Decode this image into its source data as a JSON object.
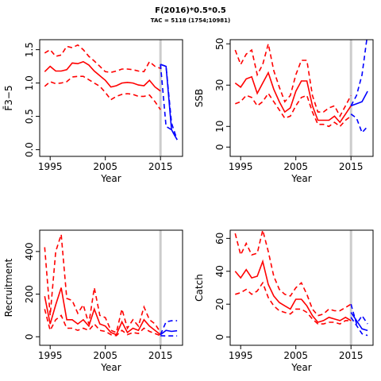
{
  "title": "F(2016)*0.5*0.5",
  "subtitle": "TAC = 5118 (1754;10981)",
  "chart_data": [
    {
      "type": "line",
      "xlabel": "Year",
      "ylabel": "F̄3−5",
      "xlim": [
        1993.1,
        2019
      ],
      "ylim": [
        -0.1,
        1.65
      ],
      "xticks": [
        1995,
        2005,
        2015
      ],
      "yticks": [
        {
          "value": 0,
          "label": "0.0"
        },
        {
          "value": 0.5,
          "label": "0.5"
        },
        {
          "value": 1,
          "label": "1.0"
        },
        {
          "value": 1.5,
          "label": "1.5"
        }
      ],
      "vline": 2015,
      "series": [
        {
          "color": "#ff0000",
          "dash": false,
          "x": [
            1994,
            1995,
            1996,
            1997,
            1998,
            1999,
            2000,
            2001,
            2002,
            2003,
            2004,
            2005,
            2006,
            2007,
            2008,
            2009,
            2010,
            2011,
            2012,
            2013,
            2014,
            2015
          ],
          "values": [
            1.17,
            1.25,
            1.18,
            1.18,
            1.2,
            1.3,
            1.29,
            1.32,
            1.27,
            1.18,
            1.11,
            1.04,
            0.94,
            0.96,
            1.0,
            1.01,
            1.0,
            0.97,
            0.96,
            1.04,
            0.94,
            0.88
          ]
        },
        {
          "color": "#ff0000",
          "dash": true,
          "x": [
            1994,
            1995,
            1996,
            1997,
            1998,
            1999,
            2000,
            2001,
            2002,
            2003,
            2004,
            2005,
            2006,
            2007,
            2008,
            2009,
            2010,
            2011,
            2012,
            2013,
            2014,
            2015
          ],
          "values": [
            1.45,
            1.5,
            1.4,
            1.42,
            1.55,
            1.53,
            1.57,
            1.5,
            1.4,
            1.33,
            1.25,
            1.17,
            1.16,
            1.18,
            1.21,
            1.21,
            1.2,
            1.18,
            1.17,
            1.32,
            1.25,
            1.22
          ]
        },
        {
          "color": "#ff0000",
          "dash": true,
          "x": [
            1994,
            1995,
            1996,
            1997,
            1998,
            1999,
            2000,
            2001,
            2002,
            2003,
            2004,
            2005,
            2006,
            2007,
            2008,
            2009,
            2010,
            2011,
            2012,
            2013,
            2014,
            2015
          ],
          "values": [
            0.95,
            1.02,
            0.99,
            1.0,
            1.02,
            1.09,
            1.1,
            1.1,
            1.05,
            1.0,
            0.95,
            0.86,
            0.75,
            0.8,
            0.83,
            0.84,
            0.83,
            0.8,
            0.8,
            0.82,
            0.72,
            0.6
          ]
        },
        {
          "color": "#0000ff",
          "dash": false,
          "x": [
            2015,
            2016,
            2017,
            2018
          ],
          "values": [
            1.28,
            1.25,
            0.3,
            0.15
          ]
        },
        {
          "color": "#0000ff",
          "dash": true,
          "x": [
            2015,
            2016,
            2017,
            2018
          ],
          "values": [
            1.28,
            1.25,
            0.4,
            0.15
          ]
        },
        {
          "color": "#0000ff",
          "dash": true,
          "x": [
            2015,
            2016,
            2017,
            2018
          ],
          "values": [
            1.28,
            0.35,
            0.3,
            0.15
          ]
        }
      ]
    },
    {
      "type": "line",
      "xlabel": "Year",
      "ylabel": "SSB",
      "xlim": [
        1993.1,
        2019
      ],
      "ylim": [
        -4.5,
        52
      ],
      "xticks": [
        1995,
        2005,
        2015
      ],
      "yticks": [
        0,
        10,
        30,
        50
      ],
      "vline": 2015,
      "series": [
        {
          "color": "#ff0000",
          "dash": false,
          "x": [
            1994,
            1995,
            1996,
            1997,
            1998,
            1999,
            2000,
            2001,
            2002,
            2003,
            2004,
            2005,
            2006,
            2007,
            2008,
            2009,
            2010,
            2011,
            2012,
            2013,
            2014,
            2015
          ],
          "values": [
            31,
            29,
            33,
            34,
            26,
            31,
            36,
            28,
            22,
            17,
            19,
            27,
            32,
            32,
            20,
            13,
            13,
            13,
            15,
            12,
            16,
            20
          ]
        },
        {
          "color": "#ff0000",
          "dash": true,
          "x": [
            1994,
            1995,
            1996,
            1997,
            1998,
            1999,
            2000,
            2001,
            2002,
            2003,
            2004,
            2005,
            2006,
            2007,
            2008,
            2009,
            2010,
            2011,
            2012,
            2013,
            2014,
            2015
          ],
          "values": [
            47,
            40,
            45,
            47,
            35,
            40,
            50,
            37,
            29,
            22,
            25,
            35,
            42,
            42,
            25,
            17,
            17,
            19,
            20,
            15,
            20,
            25
          ]
        },
        {
          "color": "#ff0000",
          "dash": true,
          "x": [
            1994,
            1995,
            1996,
            1997,
            1998,
            1999,
            2000,
            2001,
            2002,
            2003,
            2004,
            2005,
            2006,
            2007,
            2008,
            2009,
            2010,
            2011,
            2012,
            2013,
            2014,
            2015
          ],
          "values": [
            21,
            22,
            25,
            24,
            20,
            22,
            26,
            22,
            18,
            14,
            15,
            20,
            24,
            25,
            17,
            11,
            11,
            10,
            12,
            10,
            13,
            15
          ]
        },
        {
          "color": "#0000ff",
          "dash": false,
          "x": [
            2015,
            2016,
            2017,
            2018
          ],
          "values": [
            20,
            21,
            22,
            27
          ]
        },
        {
          "color": "#0000ff",
          "dash": true,
          "x": [
            2015,
            2016,
            2017,
            2018
          ],
          "values": [
            20,
            25,
            35,
            55
          ]
        },
        {
          "color": "#0000ff",
          "dash": true,
          "x": [
            2015,
            2016,
            2017,
            2018
          ],
          "values": [
            16,
            14,
            7,
            10
          ]
        }
      ]
    },
    {
      "type": "line",
      "xlabel": "Year",
      "ylabel": "Recruitment",
      "xlim": [
        1993.1,
        2019
      ],
      "ylim": [
        -40,
        500
      ],
      "xticks": [
        1995,
        2005,
        2015
      ],
      "yticks": [
        0,
        200,
        400
      ],
      "vline": 2015,
      "series": [
        {
          "color": "#ff0000",
          "dash": false,
          "x": [
            1994,
            1995,
            1996,
            1997,
            1998,
            1999,
            2000,
            2001,
            2002,
            2003,
            2004,
            2005,
            2006,
            2007,
            2008,
            2009,
            2010,
            2011,
            2012,
            2013,
            2014,
            2015
          ],
          "values": [
            190,
            60,
            150,
            230,
            80,
            80,
            60,
            80,
            50,
            130,
            60,
            50,
            20,
            10,
            70,
            20,
            40,
            30,
            80,
            50,
            30,
            10
          ]
        },
        {
          "color": "#ff0000",
          "dash": true,
          "x": [
            1994,
            1995,
            1996,
            1997,
            1998,
            1999,
            2000,
            2001,
            2002,
            2003,
            2004,
            2005,
            2006,
            2007,
            2008,
            2009,
            2010,
            2011,
            2012,
            2013,
            2014,
            2015
          ],
          "values": [
            420,
            100,
            400,
            480,
            180,
            170,
            110,
            150,
            60,
            230,
            100,
            90,
            30,
            20,
            130,
            40,
            80,
            50,
            140,
            80,
            60,
            20
          ]
        },
        {
          "color": "#ff0000",
          "dash": true,
          "x": [
            1994,
            1995,
            1996,
            1997,
            1998,
            1999,
            2000,
            2001,
            2002,
            2003,
            2004,
            2005,
            2006,
            2007,
            2008,
            2009,
            2010,
            2011,
            2012,
            2013,
            2014,
            2015
          ],
          "values": [
            130,
            30,
            80,
            100,
            40,
            40,
            30,
            40,
            30,
            60,
            30,
            25,
            10,
            5,
            30,
            10,
            20,
            15,
            40,
            25,
            15,
            5
          ]
        },
        {
          "color": "#0000ff",
          "dash": false,
          "x": [
            2015,
            2016,
            2017,
            2018
          ],
          "values": [
            10,
            30,
            25,
            28
          ]
        },
        {
          "color": "#0000ff",
          "dash": true,
          "x": [
            2015,
            2016,
            2017,
            2018
          ],
          "values": [
            10,
            70,
            75,
            75
          ]
        },
        {
          "color": "#0000ff",
          "dash": true,
          "x": [
            2015,
            2016,
            2017,
            2018
          ],
          "values": [
            5,
            4,
            4,
            4
          ]
        }
      ]
    },
    {
      "type": "line",
      "xlabel": "Year",
      "ylabel": "Catch",
      "xlim": [
        1993.1,
        2019
      ],
      "ylim": [
        -5,
        65
      ],
      "xticks": [
        1995,
        2005,
        2015
      ],
      "yticks": [
        0,
        20,
        40,
        60
      ],
      "vline": 2015,
      "series": [
        {
          "color": "#ff0000",
          "dash": false,
          "x": [
            1994,
            1995,
            1996,
            1997,
            1998,
            1999,
            2000,
            2001,
            2002,
            2003,
            2004,
            2005,
            2006,
            2007,
            2008,
            2009,
            2010,
            2011,
            2012,
            2013,
            2014,
            2015
          ],
          "values": [
            40,
            36,
            41,
            36,
            37,
            46,
            32,
            25,
            21,
            19,
            17,
            23,
            23,
            19,
            13,
            9,
            10,
            12,
            11,
            10,
            12,
            10
          ]
        },
        {
          "color": "#ff0000",
          "dash": true,
          "x": [
            1994,
            1995,
            1996,
            1997,
            1998,
            1999,
            2000,
            2001,
            2002,
            2003,
            2004,
            2005,
            2006,
            2007,
            2008,
            2009,
            2010,
            2011,
            2012,
            2013,
            2014,
            2015
          ],
          "values": [
            63,
            50,
            57,
            50,
            51,
            65,
            52,
            37,
            29,
            26,
            25,
            30,
            33,
            26,
            17,
            13,
            14,
            17,
            16,
            16,
            18,
            20
          ]
        },
        {
          "color": "#ff0000",
          "dash": true,
          "x": [
            1994,
            1995,
            1996,
            1997,
            1998,
            1999,
            2000,
            2001,
            2002,
            2003,
            2004,
            2005,
            2006,
            2007,
            2008,
            2009,
            2010,
            2011,
            2012,
            2013,
            2014,
            2015
          ],
          "values": [
            26,
            27,
            29,
            26,
            28,
            33,
            24,
            19,
            16,
            15,
            14,
            17,
            17,
            15,
            11,
            8,
            8,
            9,
            9,
            8,
            10,
            10
          ]
        },
        {
          "color": "#0000ff",
          "dash": false,
          "x": [
            2015,
            2016,
            2017,
            2018
          ],
          "values": [
            15,
            10,
            5,
            4
          ]
        },
        {
          "color": "#0000ff",
          "dash": true,
          "x": [
            2015,
            2016,
            2017,
            2018
          ],
          "values": [
            20,
            8,
            13,
            8
          ]
        },
        {
          "color": "#0000ff",
          "dash": true,
          "x": [
            2015,
            2016,
            2017,
            2018
          ],
          "values": [
            12,
            7,
            2,
            1
          ]
        }
      ]
    }
  ]
}
